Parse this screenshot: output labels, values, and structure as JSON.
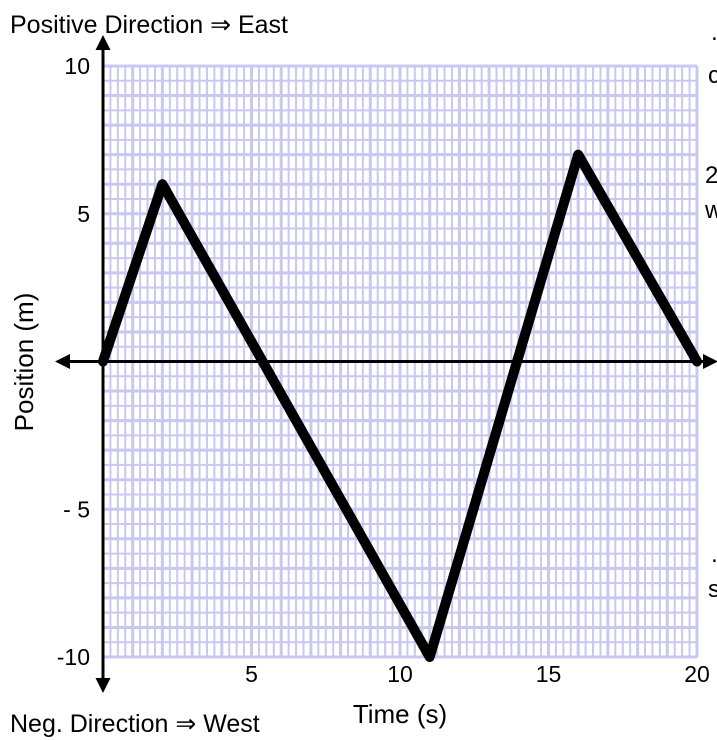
{
  "chart_data": {
    "type": "line",
    "title": "Positive Direction ⇒ East",
    "subtitle": "Neg. Direction ⇒ West",
    "xlabel": "Time (s)",
    "ylabel": "Position (m)",
    "xlim": [
      0,
      20
    ],
    "ylim": [
      -10,
      10
    ],
    "x_ticks": [
      {
        "value": 5,
        "label": "5"
      },
      {
        "value": 10,
        "label": "10"
      },
      {
        "value": 15,
        "label": "15"
      },
      {
        "value": 20,
        "label": "20"
      }
    ],
    "y_ticks": [
      {
        "value": 10,
        "label": "10"
      },
      {
        "value": 5,
        "label": "5"
      },
      {
        "value": -5,
        "label": "- 5"
      },
      {
        "value": -10,
        "label": "-10"
      }
    ],
    "grid": true,
    "grid_color": "#c8c8f0",
    "line_color": "#000000",
    "series": [
      {
        "x": [
          0,
          2,
          11,
          16,
          20
        ],
        "y": [
          0,
          6,
          -10,
          7,
          0
        ]
      }
    ],
    "cropped_text": [
      "…",
      "c",
      "2",
      "w",
      "…",
      "s"
    ]
  }
}
